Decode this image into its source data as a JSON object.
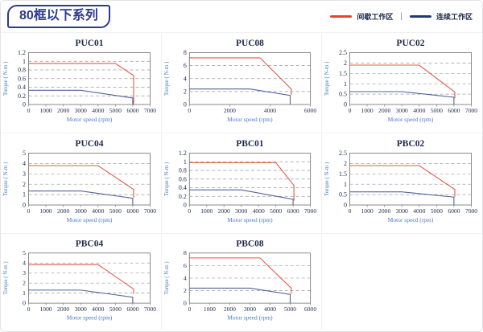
{
  "header": {
    "title": "80框以下系列",
    "legend": [
      {
        "label": "间歇工作区",
        "color": "#e8432c"
      },
      {
        "label": "连续工作区",
        "color": "#1f3a7a"
      }
    ],
    "legend_separator": "|"
  },
  "axis": {
    "xlabel": "Motor speed (rpm)",
    "ylabel": "Torque ( N-m )"
  },
  "colors": {
    "red_line": "#e15a44",
    "blue_line": "#53639a",
    "title_text": "#1c2b4a",
    "tick_text": "#1c2b4a",
    "axis_label_text": "#4b79c9",
    "grid_line": "#9a9a9a",
    "plot_border": "#8a8a8a",
    "chip_border": "#2e3a8c"
  },
  "chart_data": [
    {
      "type": "line",
      "title": "PUC01",
      "xlim": [
        0,
        7000
      ],
      "ylim": [
        0,
        1.2
      ],
      "xticks": [
        0,
        1000,
        2000,
        3000,
        4000,
        5000,
        6000,
        7000
      ],
      "yticks": [
        0,
        0.2,
        0.4,
        0.6,
        0.8,
        1,
        1.2
      ],
      "series": [
        {
          "name": "间歇工作区",
          "color": "red",
          "points": [
            [
              0,
              0.95
            ],
            [
              5000,
              0.95
            ],
            [
              6050,
              0.67
            ],
            [
              6050,
              0
            ]
          ]
        },
        {
          "name": "连续工作区",
          "color": "blue",
          "points": [
            [
              0,
              0.33
            ],
            [
              3000,
              0.33
            ],
            [
              6000,
              0.15
            ],
            [
              6000,
              0
            ]
          ]
        }
      ]
    },
    {
      "type": "line",
      "title": "PUC08",
      "xlim": [
        0,
        6000
      ],
      "ylim": [
        0,
        8
      ],
      "xticks": [
        0,
        2000,
        4000,
        6000
      ],
      "yticks": [
        0,
        2,
        4,
        6,
        8
      ],
      "series": [
        {
          "name": "间歇工作区",
          "color": "red",
          "points": [
            [
              0,
              7.2
            ],
            [
              3500,
              7.2
            ],
            [
              5050,
              2.4
            ],
            [
              5050,
              1.5
            ]
          ]
        },
        {
          "name": "连续工作区",
          "color": "blue",
          "points": [
            [
              0,
              2.4
            ],
            [
              3000,
              2.4
            ],
            [
              5000,
              1.4
            ],
            [
              5000,
              0
            ]
          ]
        }
      ]
    },
    {
      "type": "line",
      "title": "PUC02",
      "xlim": [
        0,
        7000
      ],
      "ylim": [
        0,
        2.5
      ],
      "xticks": [
        0,
        1000,
        2000,
        3000,
        4000,
        5000,
        6000,
        7000
      ],
      "yticks": [
        0,
        0.5,
        1,
        1.5,
        2,
        2.5
      ],
      "series": [
        {
          "name": "间歇工作区",
          "color": "red",
          "points": [
            [
              0,
              1.9
            ],
            [
              4000,
              1.9
            ],
            [
              6050,
              0.6
            ],
            [
              6050,
              0.3
            ]
          ]
        },
        {
          "name": "连续工作区",
          "color": "blue",
          "points": [
            [
              0,
              0.62
            ],
            [
              3000,
              0.62
            ],
            [
              6000,
              0.35
            ],
            [
              6000,
              0
            ]
          ]
        }
      ]
    },
    {
      "type": "line",
      "title": "PUC04",
      "xlim": [
        0,
        7000
      ],
      "ylim": [
        0,
        5
      ],
      "xticks": [
        0,
        1000,
        2000,
        3000,
        4000,
        5000,
        6000,
        7000
      ],
      "yticks": [
        0,
        1,
        2,
        3,
        4,
        5
      ],
      "series": [
        {
          "name": "间歇工作区",
          "color": "red",
          "points": [
            [
              0,
              3.8
            ],
            [
              4000,
              3.8
            ],
            [
              6050,
              1.5
            ],
            [
              6050,
              0.7
            ]
          ]
        },
        {
          "name": "连续工作区",
          "color": "blue",
          "points": [
            [
              0,
              1.35
            ],
            [
              3000,
              1.35
            ],
            [
              6000,
              0.65
            ],
            [
              6000,
              0
            ]
          ]
        }
      ]
    },
    {
      "type": "line",
      "title": "PBC01",
      "xlim": [
        0,
        7000
      ],
      "ylim": [
        0,
        1.2
      ],
      "xticks": [
        0,
        1000,
        2000,
        3000,
        4000,
        5000,
        6000,
        7000
      ],
      "yticks": [
        0,
        0.2,
        0.4,
        0.6,
        0.8,
        1,
        1.2
      ],
      "series": [
        {
          "name": "间歇工作区",
          "color": "red",
          "points": [
            [
              0,
              0.98
            ],
            [
              5000,
              0.98
            ],
            [
              6050,
              0.45
            ],
            [
              6050,
              0.1
            ]
          ]
        },
        {
          "name": "连续工作区",
          "color": "blue",
          "points": [
            [
              0,
              0.35
            ],
            [
              3000,
              0.35
            ],
            [
              6000,
              0.13
            ],
            [
              6000,
              0
            ]
          ]
        }
      ]
    },
    {
      "type": "line",
      "title": "PBC02",
      "xlim": [
        0,
        7000
      ],
      "ylim": [
        0,
        2.5
      ],
      "xticks": [
        0,
        1000,
        2000,
        3000,
        4000,
        5000,
        6000,
        7000
      ],
      "yticks": [
        0,
        0.5,
        1,
        1.5,
        2,
        2.5
      ],
      "series": [
        {
          "name": "间歇工作区",
          "color": "red",
          "points": [
            [
              0,
              1.9
            ],
            [
              4000,
              1.9
            ],
            [
              6050,
              0.75
            ],
            [
              6050,
              0.4
            ]
          ]
        },
        {
          "name": "连续工作区",
          "color": "blue",
          "points": [
            [
              0,
              0.63
            ],
            [
              3000,
              0.63
            ],
            [
              6000,
              0.38
            ],
            [
              6000,
              0
            ]
          ]
        }
      ]
    },
    {
      "type": "line",
      "title": "PBC04",
      "xlim": [
        0,
        7000
      ],
      "ylim": [
        0,
        5
      ],
      "xticks": [
        0,
        1000,
        2000,
        3000,
        4000,
        5000,
        6000,
        7000
      ],
      "yticks": [
        0,
        1,
        2,
        3,
        4,
        5
      ],
      "series": [
        {
          "name": "间歇工作区",
          "color": "red",
          "points": [
            [
              0,
              3.85
            ],
            [
              4000,
              3.85
            ],
            [
              6050,
              1.4
            ],
            [
              6050,
              0.95
            ]
          ]
        },
        {
          "name": "连续工作区",
          "color": "blue",
          "points": [
            [
              0,
              1.3
            ],
            [
              3000,
              1.3
            ],
            [
              6000,
              0.6
            ],
            [
              6000,
              0
            ]
          ]
        }
      ]
    },
    {
      "type": "line",
      "title": "PBC08",
      "xlim": [
        0,
        6000
      ],
      "ylim": [
        0,
        8
      ],
      "xticks": [
        0,
        1000,
        2000,
        3000,
        4000,
        5000,
        6000
      ],
      "yticks": [
        0,
        2,
        4,
        6,
        8
      ],
      "series": [
        {
          "name": "间歇工作区",
          "color": "red",
          "points": [
            [
              0,
              7.2
            ],
            [
              3500,
              7.2
            ],
            [
              5050,
              2.4
            ],
            [
              5050,
              1.5
            ]
          ]
        },
        {
          "name": "连续工作区",
          "color": "blue",
          "points": [
            [
              0,
              2.4
            ],
            [
              3000,
              2.4
            ],
            [
              5000,
              1.4
            ],
            [
              5000,
              0
            ]
          ]
        }
      ]
    }
  ]
}
